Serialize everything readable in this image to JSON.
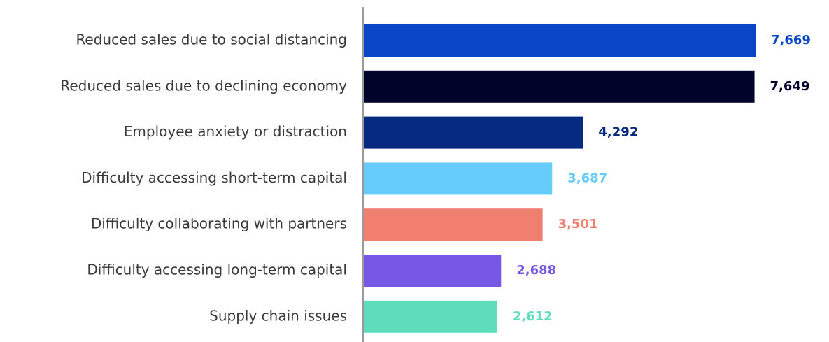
{
  "chart_data": {
    "type": "bar",
    "orientation": "horizontal",
    "categories": [
      "Reduced sales due to social distancing",
      "Reduced sales due to declining economy",
      "Employee anxiety or distraction",
      "Difficulty accessing short-term capital",
      "Difficulty collaborating with partners",
      "Difficulty accessing long-term capital",
      "Supply chain issues"
    ],
    "values": [
      7669,
      7649,
      4292,
      3687,
      3501,
      2688,
      2612
    ],
    "value_labels": [
      "7,669",
      "7,649",
      "4,292",
      "3,687",
      "3,501",
      "2,688",
      "2,612"
    ],
    "colors": [
      "#0a45c8",
      "#00042a",
      "#062a80",
      "#66ccfa",
      "#f07f70",
      "#7758e6",
      "#5fdcbc"
    ]
  }
}
